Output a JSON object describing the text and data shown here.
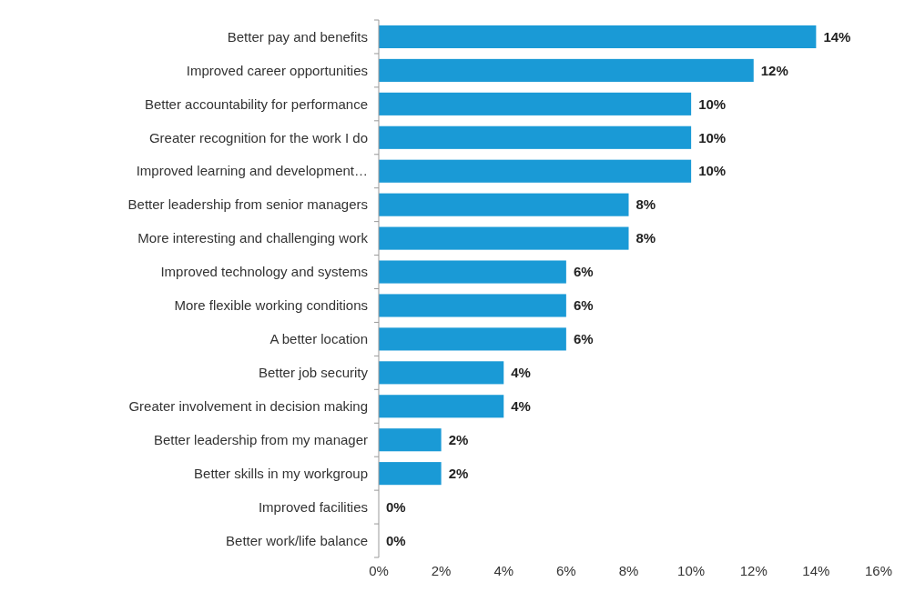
{
  "chart_data": {
    "type": "bar",
    "orientation": "horizontal",
    "categories": [
      "Better pay and benefits",
      "Improved career opportunities",
      "Better accountability for performance",
      "Greater recognition for the work I do",
      "Improved learning and development…",
      "Better leadership from senior managers",
      "More interesting and challenging work",
      "Improved technology and systems",
      "More flexible working conditions",
      "A better location",
      "Better job security",
      "Greater involvement in decision making",
      "Better leadership from my manager",
      "Better skills in my workgroup",
      "Improved facilities",
      "Better work/life balance"
    ],
    "values": [
      14,
      12,
      10,
      10,
      10,
      8,
      8,
      6,
      6,
      6,
      4,
      4,
      2,
      2,
      0,
      0
    ],
    "value_labels": [
      "14%",
      "12%",
      "10%",
      "10%",
      "10%",
      "8%",
      "8%",
      "6%",
      "6%",
      "6%",
      "4%",
      "4%",
      "2%",
      "2%",
      "0%",
      "0%"
    ],
    "color": "#1a9ad6",
    "xlim": [
      0,
      16
    ],
    "xticks": [
      {
        "value": 0,
        "label": "0%"
      },
      {
        "value": 2,
        "label": "2%"
      },
      {
        "value": 4,
        "label": "4%"
      },
      {
        "value": 6,
        "label": "6%"
      },
      {
        "value": 8,
        "label": "8%"
      },
      {
        "value": 10,
        "label": "10%"
      },
      {
        "value": 12,
        "label": "12%"
      },
      {
        "value": 14,
        "label": "14%"
      },
      {
        "value": 16,
        "label": "16%"
      }
    ]
  }
}
